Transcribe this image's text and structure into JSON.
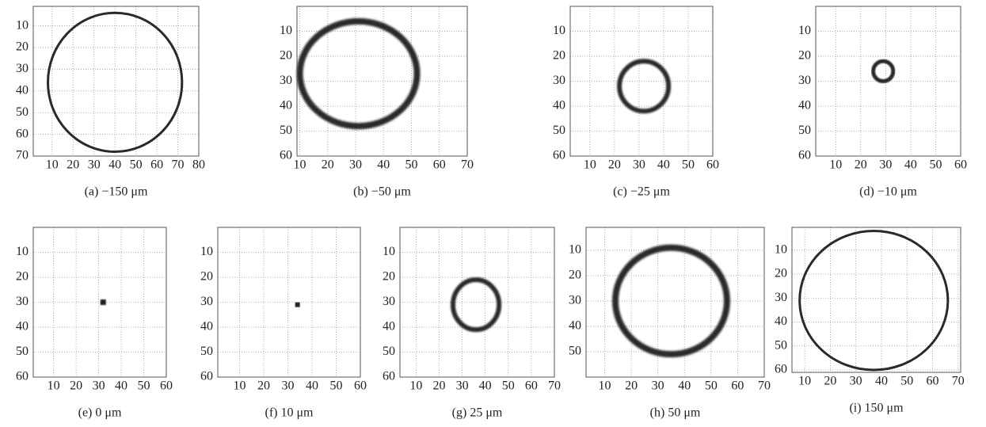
{
  "chart_data": [
    {
      "type": "ring",
      "caption": "(a) −150 μm",
      "xlim": [
        1,
        80
      ],
      "ylim": [
        1,
        70
      ],
      "xticks": [
        10,
        20,
        30,
        40,
        50,
        60,
        70,
        80
      ],
      "yticks": [
        10,
        20,
        30,
        40,
        50,
        60,
        70
      ],
      "grid": true,
      "ring": {
        "cx": 40,
        "cy": 36,
        "r": 32
      }
    },
    {
      "type": "ring",
      "caption": "(b) −50 μm",
      "xlim": [
        9,
        70
      ],
      "ylim": [
        0,
        60
      ],
      "xticks": [
        10,
        20,
        30,
        40,
        50,
        60,
        70
      ],
      "yticks": [
        10,
        20,
        30,
        40,
        50,
        60
      ],
      "grid": true,
      "ring": {
        "cx": 31,
        "cy": 27,
        "r": 21
      }
    },
    {
      "type": "ring",
      "caption": "(c) −25 μm",
      "xlim": [
        2,
        60
      ],
      "ylim": [
        0,
        60
      ],
      "xticks": [
        10,
        20,
        30,
        40,
        50,
        60
      ],
      "yticks": [
        10,
        20,
        30,
        40,
        50,
        60
      ],
      "grid": true,
      "ring": {
        "cx": 32,
        "cy": 32,
        "r": 10
      }
    },
    {
      "type": "ring",
      "caption": "(d) −10 μm",
      "xlim": [
        2,
        60
      ],
      "ylim": [
        0,
        60
      ],
      "xticks": [
        10,
        20,
        30,
        40,
        50,
        60
      ],
      "yticks": [
        10,
        20,
        30,
        40,
        50,
        60
      ],
      "grid": true,
      "ring": {
        "cx": 29,
        "cy": 26,
        "r": 4
      }
    },
    {
      "type": "ring",
      "caption": "(e) 0 μm",
      "xlim": [
        1,
        60
      ],
      "ylim": [
        0,
        60
      ],
      "xticks": [
        10,
        20,
        30,
        40,
        50,
        60
      ],
      "yticks": [
        10,
        20,
        30,
        40,
        50,
        60
      ],
      "grid": true,
      "ring": {
        "cx": 32,
        "cy": 30,
        "r": 0.8
      }
    },
    {
      "type": "ring",
      "caption": "(f) 10  μm",
      "xlim": [
        1,
        60
      ],
      "ylim": [
        0,
        60
      ],
      "xticks": [
        10,
        20,
        30,
        40,
        50,
        60
      ],
      "yticks": [
        10,
        20,
        30,
        40,
        50,
        60
      ],
      "grid": true,
      "ring": {
        "cx": 34,
        "cy": 31,
        "r": 0.8
      }
    },
    {
      "type": "ring",
      "caption": "(g) 25 μm",
      "xlim": [
        3,
        70
      ],
      "ylim": [
        0,
        60
      ],
      "xticks": [
        10,
        20,
        30,
        40,
        50,
        60,
        70
      ],
      "yticks": [
        10,
        20,
        30,
        40,
        50,
        60
      ],
      "grid": true,
      "ring": {
        "cx": 36,
        "cy": 31,
        "r": 10
      }
    },
    {
      "type": "ring",
      "caption": "(h) 50 μm",
      "xlim": [
        3,
        70
      ],
      "ylim": [
        1,
        60
      ],
      "xticks": [
        10,
        20,
        30,
        40,
        50,
        60,
        70
      ],
      "yticks": [
        10,
        20,
        30,
        40,
        50
      ],
      "grid": true,
      "ring": {
        "cx": 35,
        "cy": 30,
        "r": 21
      }
    },
    {
      "type": "ring",
      "caption": "(i) 150 μm",
      "xlim": [
        5,
        71
      ],
      "ylim": [
        0.5,
        61
      ],
      "xticks": [
        10,
        20,
        30,
        40,
        50,
        60,
        70
      ],
      "yticks": [
        10,
        20,
        30,
        40,
        50,
        60
      ],
      "grid": true,
      "ring": {
        "cx": 37,
        "cy": 31,
        "r": 29
      }
    }
  ]
}
